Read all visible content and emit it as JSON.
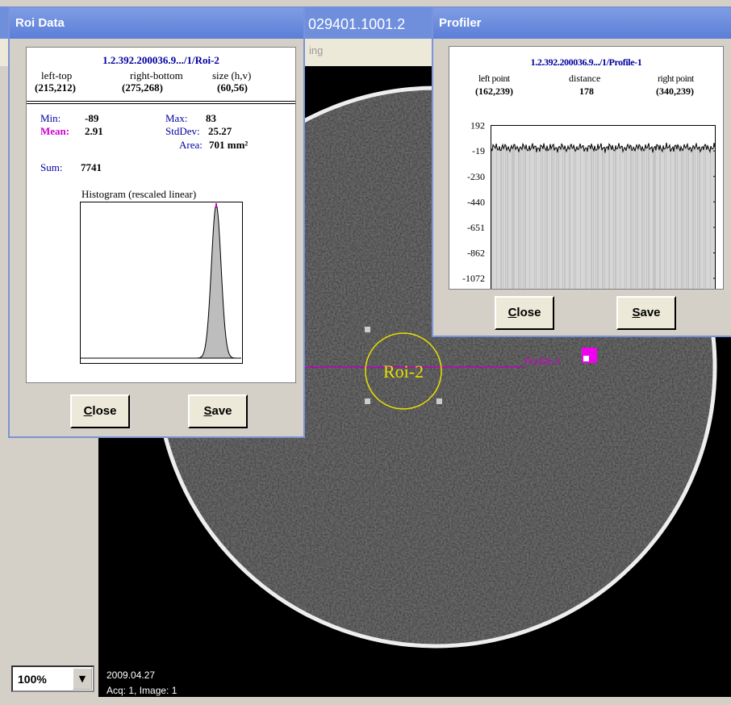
{
  "background_window": {
    "title": "029401.1001.2",
    "menu": "ing"
  },
  "viewer": {
    "overlays": {
      "roi": "Roi-2",
      "profile": "Profile-1"
    },
    "zoom": "100%",
    "info": {
      "date": "2009.04.27",
      "acquisition": "Acq: 1, Image: 1"
    }
  },
  "roi_dialog": {
    "title": "Roi Data",
    "header": "1.2.392.200036.9.../1/Roi-2",
    "columns": [
      {
        "label": "left-top",
        "value": "(215,212)"
      },
      {
        "label": "right-bottom",
        "value": "(275,268)"
      },
      {
        "label": "size (h,v)",
        "value": "(60,56)"
      }
    ],
    "stats": {
      "min_label": "Min:",
      "min": -89,
      "max_label": "Max:",
      "max": 83,
      "mean_label": "Mean:",
      "mean": 2.91,
      "stddev_label": "StdDev:",
      "stddev": 25.27,
      "area_label": "Area:",
      "area": "701 mm²",
      "sum_label": "Sum:",
      "sum": 7741
    },
    "histogram_title": "Histogram (rescaled linear)",
    "buttons": [
      "Close",
      "Save"
    ]
  },
  "profiler_dialog": {
    "title": "Profiler",
    "header": "1.2.392.200036.9.../1/Profile-1",
    "columns": [
      {
        "label": "left point",
        "value": "(162,239)"
      },
      {
        "label": "distance",
        "value": 178
      },
      {
        "label": "right point",
        "value": "(340,239)"
      }
    ],
    "yticks": [
      192,
      -19,
      -230,
      -440,
      -651,
      -862,
      -1072
    ],
    "buttons": [
      "Close",
      "Save"
    ]
  }
}
